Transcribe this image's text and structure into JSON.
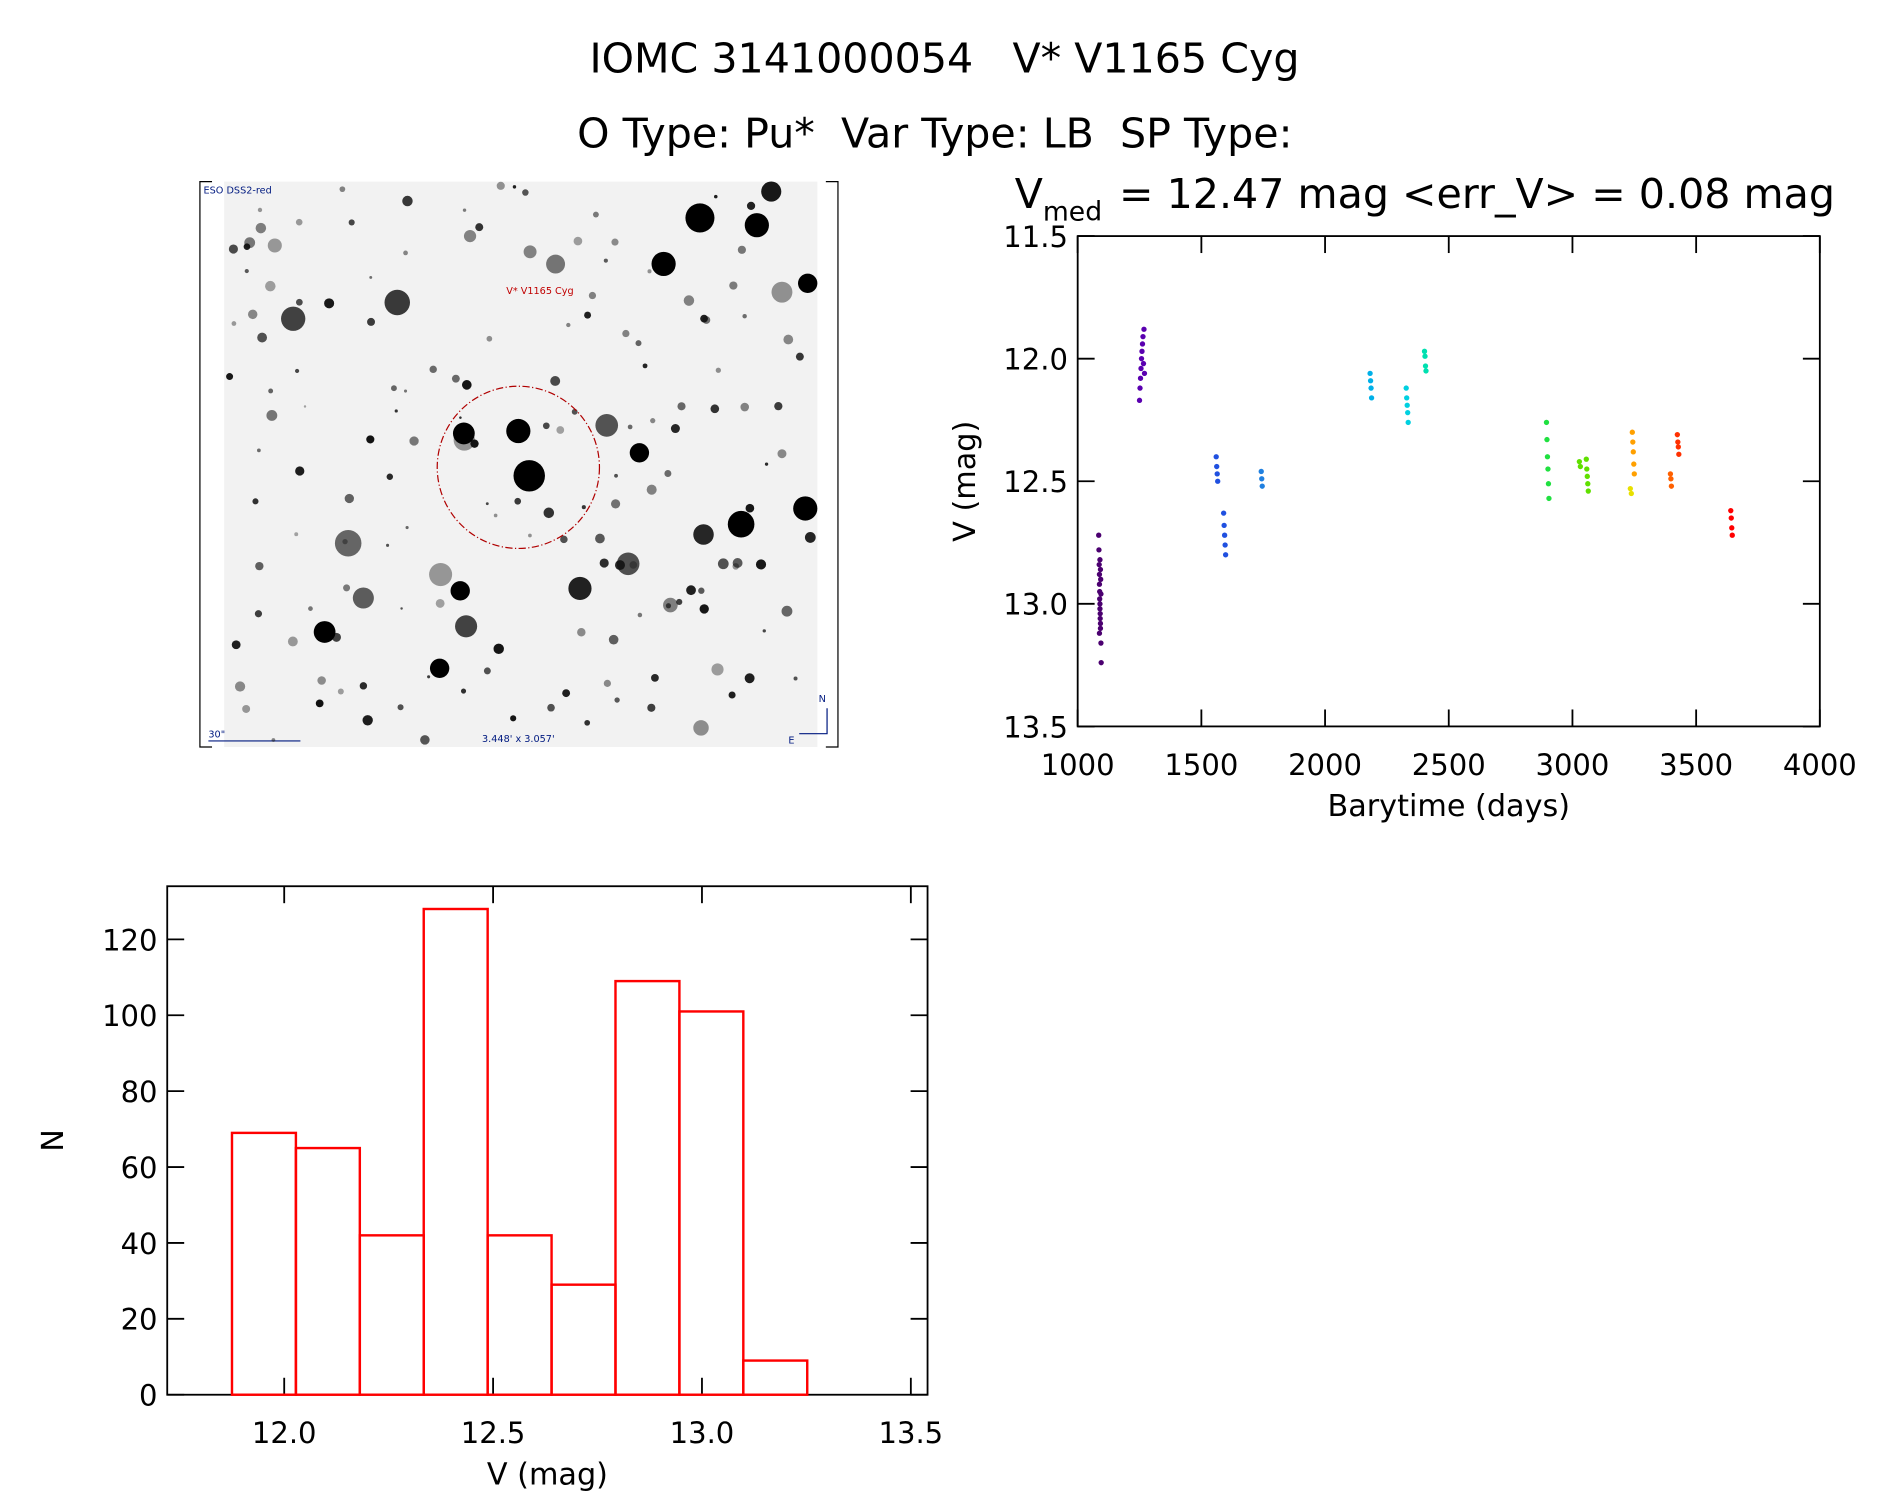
{
  "header": {
    "line1": "IOMC 3141000054   V* V1165 Cyg",
    "line2": "O Type: Pu*  Var Type: LB  SP Type:"
  },
  "image": {
    "survey": "ESO DSS2-red",
    "target": "V* V1165 Cyg",
    "scale": "30\"",
    "size": "3.448' x 3.057'",
    "north": "N",
    "east": "E"
  },
  "chart_data": [
    {
      "type": "scatter",
      "title": {
        "main": "V",
        "subscript": "med",
        "rest": "= 12.47 mag <err_V> = 0.08 mag"
      },
      "x_label": "Barytime (days)",
      "y_label": "V (mag)",
      "xlim": [
        1000,
        4000
      ],
      "xticks": [
        1000,
        1500,
        2000,
        2500,
        3000,
        3500,
        4000
      ],
      "ylim": [
        11.5,
        13.5
      ],
      "y_inverted": true,
      "yticks": [
        11.5,
        {
          "value": 12,
          "label": "12.0"
        },
        12.5,
        {
          "value": 13,
          "label": "13.0"
        },
        13.5
      ],
      "series": [
        {
          "color": "#4b0070",
          "x": [
            1085,
            1086,
            1087,
            1088,
            1088,
            1089,
            1089,
            1090,
            1090,
            1091,
            1091,
            1092,
            1092,
            1093,
            1094,
            1095,
            1088,
            1090,
            1092,
            1094
          ],
          "values": [
            12.72,
            12.78,
            12.84,
            12.88,
            12.92,
            12.95,
            12.98,
            13.0,
            13.02,
            13.04,
            13.06,
            13.08,
            13.1,
            12.9,
            12.96,
            13.24,
            13.12,
            12.82,
            12.86,
            13.16
          ]
        },
        {
          "color": "#5a00b0",
          "x": [
            1250,
            1252,
            1254,
            1256,
            1258,
            1260,
            1262,
            1264,
            1266,
            1268,
            1270
          ],
          "values": [
            12.17,
            12.12,
            12.08,
            12.04,
            12.0,
            11.97,
            11.94,
            11.91,
            12.02,
            11.88,
            12.06
          ]
        },
        {
          "color": "#2050e0",
          "x": [
            1560,
            1562,
            1564,
            1566,
            1590,
            1592,
            1594,
            1596,
            1598
          ],
          "values": [
            12.4,
            12.44,
            12.47,
            12.5,
            12.63,
            12.68,
            12.72,
            12.76,
            12.8
          ]
        },
        {
          "color": "#2080e0",
          "x": [
            1742,
            1744,
            1746
          ],
          "values": [
            12.46,
            12.49,
            12.52
          ]
        },
        {
          "color": "#00b0e8",
          "x": [
            2182,
            2184,
            2186,
            2188
          ],
          "values": [
            12.06,
            12.09,
            12.12,
            12.16
          ]
        },
        {
          "color": "#00d0e0",
          "x": [
            2328,
            2330,
            2332,
            2334,
            2336
          ],
          "values": [
            12.12,
            12.16,
            12.19,
            12.22,
            12.26
          ]
        },
        {
          "color": "#00e0b0",
          "x": [
            2402,
            2404,
            2406,
            2408
          ],
          "values": [
            11.97,
            11.99,
            12.03,
            12.05
          ]
        },
        {
          "color": "#20e040",
          "x": [
            2895,
            2897,
            2899,
            2901,
            2903,
            2905
          ],
          "values": [
            12.26,
            12.33,
            12.4,
            12.45,
            12.51,
            12.57
          ]
        },
        {
          "color": "#60e000",
          "x": [
            3028,
            3032,
            3056,
            3058,
            3060,
            3062,
            3064
          ],
          "values": [
            12.42,
            12.44,
            12.41,
            12.45,
            12.48,
            12.51,
            12.54
          ]
        },
        {
          "color": "#e8e000",
          "x": [
            3234,
            3238
          ],
          "values": [
            12.53,
            12.55
          ]
        },
        {
          "color": "#ffa000",
          "x": [
            3242,
            3244,
            3246,
            3248,
            3250
          ],
          "values": [
            12.3,
            12.34,
            12.38,
            12.43,
            12.47
          ]
        },
        {
          "color": "#ff6000",
          "x": [
            3396,
            3398,
            3400
          ],
          "values": [
            12.47,
            12.49,
            12.52
          ]
        },
        {
          "color": "#ff3000",
          "x": [
            3424,
            3426,
            3428,
            3430
          ],
          "values": [
            12.31,
            12.34,
            12.36,
            12.39
          ]
        },
        {
          "color": "#ff0000",
          "x": [
            3640,
            3642,
            3644,
            3646
          ],
          "values": [
            12.62,
            12.65,
            12.69,
            12.72
          ]
        }
      ]
    },
    {
      "type": "histogram",
      "x_label": "V (mag)",
      "y_label": "N",
      "color": "#ff0000",
      "bins": [
        11.875,
        12.028,
        12.181,
        12.334,
        12.487,
        12.64,
        12.793,
        12.946,
        13.099,
        13.252
      ],
      "values": [
        69,
        65,
        42,
        128,
        42,
        29,
        109,
        101,
        9
      ],
      "xlim": [
        11.72,
        13.54
      ],
      "xticks": [
        {
          "value": 12,
          "label": "12.0"
        },
        12.5,
        {
          "value": 13,
          "label": "13.0"
        },
        13.5
      ],
      "ylim": [
        0,
        134
      ],
      "yticks": [
        0,
        20,
        40,
        60,
        80,
        100,
        120
      ]
    }
  ]
}
